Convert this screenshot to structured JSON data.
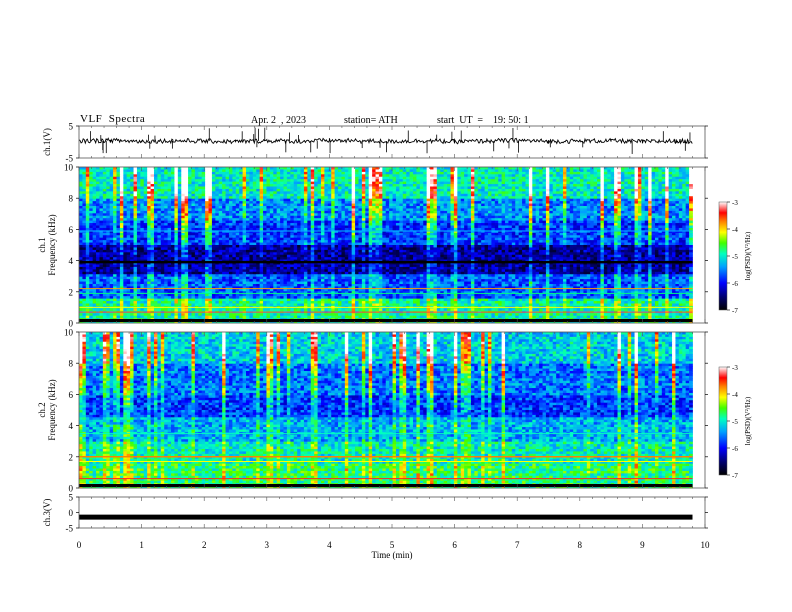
{
  "header": {
    "title": "VLF  Spectra",
    "date": "Apr. 2  , 2023",
    "station": "station= ATH",
    "start_ut": "start  UT  =    19: 50: 1"
  },
  "colors": {
    "spectrogram_low": "#00006e",
    "spectrogram_mid": "#0096ff",
    "spectrogram_high": "#ff0000",
    "trace": "#000000",
    "frame": "#555555"
  },
  "chart_data": [
    {
      "type": "line",
      "name": "ch1-waveform",
      "ylabel": "ch.1(V)",
      "ylim": [
        -5,
        5
      ],
      "yticks": [
        "5",
        "-5"
      ],
      "x": [
        0,
        0.5,
        1,
        1.5,
        2,
        2.5,
        3,
        3.5,
        4,
        4.5,
        5,
        5.5,
        6,
        6.5,
        7,
        7.5,
        8,
        8.5,
        9,
        9.5,
        9.8
      ],
      "y": [
        0.3,
        0.5,
        0.2,
        0.4,
        0.3,
        0.1,
        0.4,
        0.2,
        0.5,
        0.3,
        0.2,
        0.4,
        0.1,
        0.3,
        0.5,
        0.2,
        0.3,
        0.4,
        0.1,
        0.3,
        0.2
      ]
    },
    {
      "type": "heatmap",
      "name": "ch1-spectrogram",
      "ylabel": "ch.1\nFrequency  (kHz)",
      "ylim": [
        0,
        10
      ],
      "yticks": [
        "0",
        "2",
        "4",
        "6",
        "8",
        "10"
      ],
      "colorbar": {
        "label": "log(PSD)(V²/Hz)",
        "range": [
          -7,
          -3
        ],
        "ticks": [
          "-3",
          "-4",
          "-5",
          "-6",
          "-7"
        ]
      }
    },
    {
      "type": "heatmap",
      "name": "ch2-spectrogram",
      "ylabel": "ch.2\nFrequency  (kHz)",
      "ylim": [
        0,
        10
      ],
      "yticks": [
        "0",
        "2",
        "4",
        "6",
        "8",
        "10"
      ],
      "colorbar": {
        "label": "log(PSD)(V²/Hz)",
        "range": [
          -7,
          -3
        ],
        "ticks": [
          "-3",
          "-4",
          "-5",
          "-6",
          "-7"
        ]
      }
    },
    {
      "type": "line",
      "name": "ch3-waveform",
      "ylabel": "ch.3(V)",
      "ylim": [
        -5,
        5
      ],
      "yticks": [
        "5",
        "0",
        "-5"
      ],
      "x": [
        0,
        9.8
      ],
      "y": [
        -1.5,
        -1.5
      ]
    }
  ],
  "xaxis": {
    "label": "Time  (min)",
    "range": [
      0,
      10
    ],
    "data_end": 9.8,
    "ticks": [
      "0",
      "1",
      "2",
      "3",
      "4",
      "5",
      "6",
      "7",
      "8",
      "9",
      "10"
    ]
  }
}
